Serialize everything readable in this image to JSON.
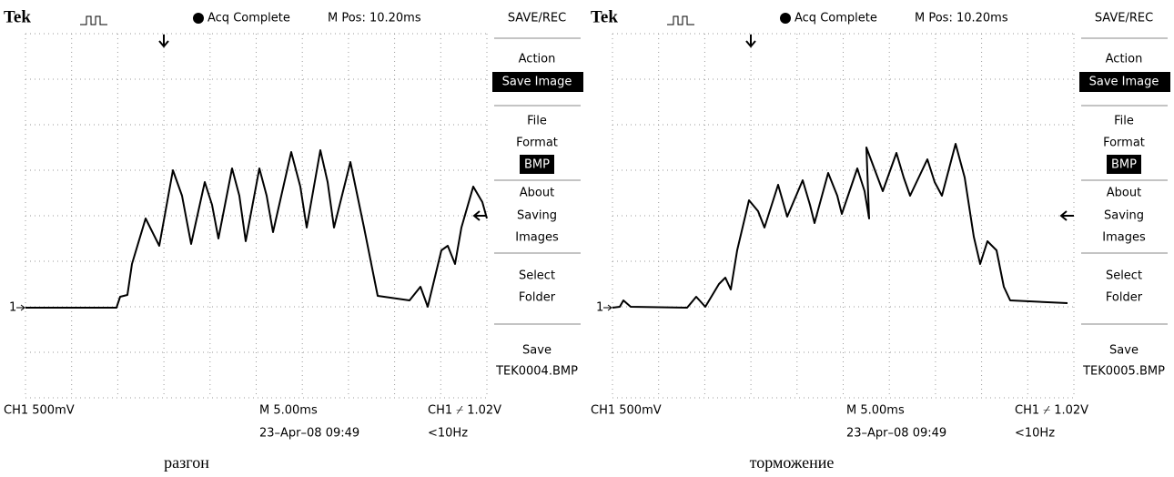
{
  "screens": [
    {
      "header": {
        "brand": "Tek",
        "status": "Acq Complete",
        "position": "M Pos: 10.20ms"
      },
      "menu": {
        "title": "SAVE/REC",
        "action_label": "Action",
        "action_value": "Save Image",
        "file_label_1": "File",
        "file_label_2": "Format",
        "file_value": "BMP",
        "about_1": "About",
        "about_2": "Saving",
        "about_3": "Images",
        "select_1": "Select",
        "select_2": "Folder",
        "save_label": "Save",
        "save_file": "TEK0004.BMP"
      },
      "footer": {
        "channel": "CH1  500mV",
        "timebase": "M 5.00ms",
        "trigger": "CH1 ⌿ 1.02V",
        "datetime": "23–Apr–08 09:49",
        "frequency": "<10Hz"
      },
      "marker": "1",
      "caption": "разгон"
    },
    {
      "header": {
        "brand": "Tek",
        "status": "Acq Complete",
        "position": "M Pos: 10.20ms"
      },
      "menu": {
        "title": "SAVE/REC",
        "action_label": "Action",
        "action_value": "Save Image",
        "file_label_1": "File",
        "file_label_2": "Format",
        "file_value": "BMP",
        "about_1": "About",
        "about_2": "Saving",
        "about_3": "Images",
        "select_1": "Select",
        "select_2": "Folder",
        "save_label": "Save",
        "save_file": "TEK0005.BMP"
      },
      "footer": {
        "channel": "CH1  500mV",
        "timebase": "M 5.00ms",
        "trigger": "CH1 ⌿ 1.02V",
        "datetime": "23–Apr–08 09:49",
        "frequency": "<10Hz"
      },
      "marker": "1",
      "caption": "торможение"
    }
  ]
}
